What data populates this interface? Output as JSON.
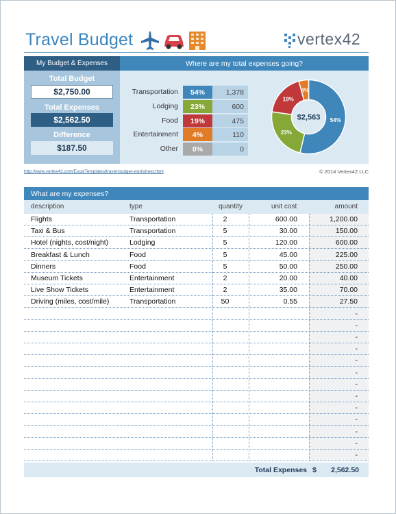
{
  "header": {
    "title": "Travel Budget",
    "icons": [
      "airplane-icon",
      "car-icon",
      "building-icon"
    ],
    "logo_text": "vertex42"
  },
  "summary": {
    "left_header": "My Budget & Expenses",
    "right_header": "Where are my total expenses going?",
    "total_budget_label": "Total Budget",
    "total_budget_value": "$2,750.00",
    "total_expenses_label": "Total Expenses",
    "total_expenses_value": "$2,562.50",
    "difference_label": "Difference",
    "difference_value": "$187.50",
    "categories": [
      {
        "name": "Transportation",
        "pct": "54%",
        "amount": "1,378",
        "color": "#3f86bb"
      },
      {
        "name": "Lodging",
        "pct": "23%",
        "amount": "600",
        "color": "#86a838"
      },
      {
        "name": "Food",
        "pct": "19%",
        "amount": "475",
        "color": "#c0383a"
      },
      {
        "name": "Entertainment",
        "pct": "4%",
        "amount": "110",
        "color": "#e07b26"
      },
      {
        "name": "Other",
        "pct": "0%",
        "amount": "0",
        "color": "#a9a9a9"
      }
    ]
  },
  "chart_data": {
    "type": "pie",
    "title": "",
    "center_label": "$2,563",
    "slices": [
      {
        "label": "Transportation",
        "value": 1378,
        "pct_label": "54%",
        "color": "#3f86bb"
      },
      {
        "label": "Lodging",
        "value": 600,
        "pct_label": "23%",
        "color": "#86a838"
      },
      {
        "label": "Food",
        "value": 475,
        "pct_label": "19%",
        "color": "#c0383a"
      },
      {
        "label": "Entertainment",
        "value": 110,
        "pct_label": "4%",
        "color": "#e07b26"
      },
      {
        "label": "Other",
        "value": 0,
        "pct_label": "",
        "color": "#a9a9a9"
      }
    ]
  },
  "footer": {
    "link": "http://www.vertex42.com/ExcelTemplates/travel-budget-worksheet.html",
    "copyright": "© 2014 Vertex42 LLC"
  },
  "expenses": {
    "title": "What are my expenses?",
    "columns": {
      "description": "description",
      "type": "type",
      "quantity": "quantity",
      "unit_cost": "unit cost",
      "amount": "amount"
    },
    "rows": [
      {
        "description": "Flights",
        "type": "Transportation",
        "quantity": "2",
        "unit_cost": "600.00",
        "amount": "1,200.00"
      },
      {
        "description": "Taxi & Bus",
        "type": "Transportation",
        "quantity": "5",
        "unit_cost": "30.00",
        "amount": "150.00"
      },
      {
        "description": "Hotel (nights, cost/night)",
        "type": "Lodging",
        "quantity": "5",
        "unit_cost": "120.00",
        "amount": "600.00"
      },
      {
        "description": "Breakfast & Lunch",
        "type": "Food",
        "quantity": "5",
        "unit_cost": "45.00",
        "amount": "225.00"
      },
      {
        "description": "Dinners",
        "type": "Food",
        "quantity": "5",
        "unit_cost": "50.00",
        "amount": "250.00"
      },
      {
        "description": "Museum Tickets",
        "type": "Entertainment",
        "quantity": "2",
        "unit_cost": "20.00",
        "amount": "40.00"
      },
      {
        "description": "Live Show Tickets",
        "type": "Entertainment",
        "quantity": "2",
        "unit_cost": "35.00",
        "amount": "70.00"
      },
      {
        "description": "Driving (miles, cost/mile)",
        "type": "Transportation",
        "quantity": "50",
        "unit_cost": "0.55",
        "amount": "27.50"
      },
      {
        "description": "",
        "type": "",
        "quantity": "",
        "unit_cost": "",
        "amount": "-"
      },
      {
        "description": "",
        "type": "",
        "quantity": "",
        "unit_cost": "",
        "amount": "-"
      },
      {
        "description": "",
        "type": "",
        "quantity": "",
        "unit_cost": "",
        "amount": "-"
      },
      {
        "description": "",
        "type": "",
        "quantity": "",
        "unit_cost": "",
        "amount": "-"
      },
      {
        "description": "",
        "type": "",
        "quantity": "",
        "unit_cost": "",
        "amount": "-"
      },
      {
        "description": "",
        "type": "",
        "quantity": "",
        "unit_cost": "",
        "amount": "-"
      },
      {
        "description": "",
        "type": "",
        "quantity": "",
        "unit_cost": "",
        "amount": "-"
      },
      {
        "description": "",
        "type": "",
        "quantity": "",
        "unit_cost": "",
        "amount": "-"
      },
      {
        "description": "",
        "type": "",
        "quantity": "",
        "unit_cost": "",
        "amount": "-"
      },
      {
        "description": "",
        "type": "",
        "quantity": "",
        "unit_cost": "",
        "amount": "-"
      },
      {
        "description": "",
        "type": "",
        "quantity": "",
        "unit_cost": "",
        "amount": "-"
      },
      {
        "description": "",
        "type": "",
        "quantity": "",
        "unit_cost": "",
        "amount": "-"
      },
      {
        "description": "",
        "type": "",
        "quantity": "",
        "unit_cost": "",
        "amount": "-"
      }
    ],
    "total_label": "Total Expenses",
    "total_currency": "$",
    "total_value": "2,562.50"
  }
}
